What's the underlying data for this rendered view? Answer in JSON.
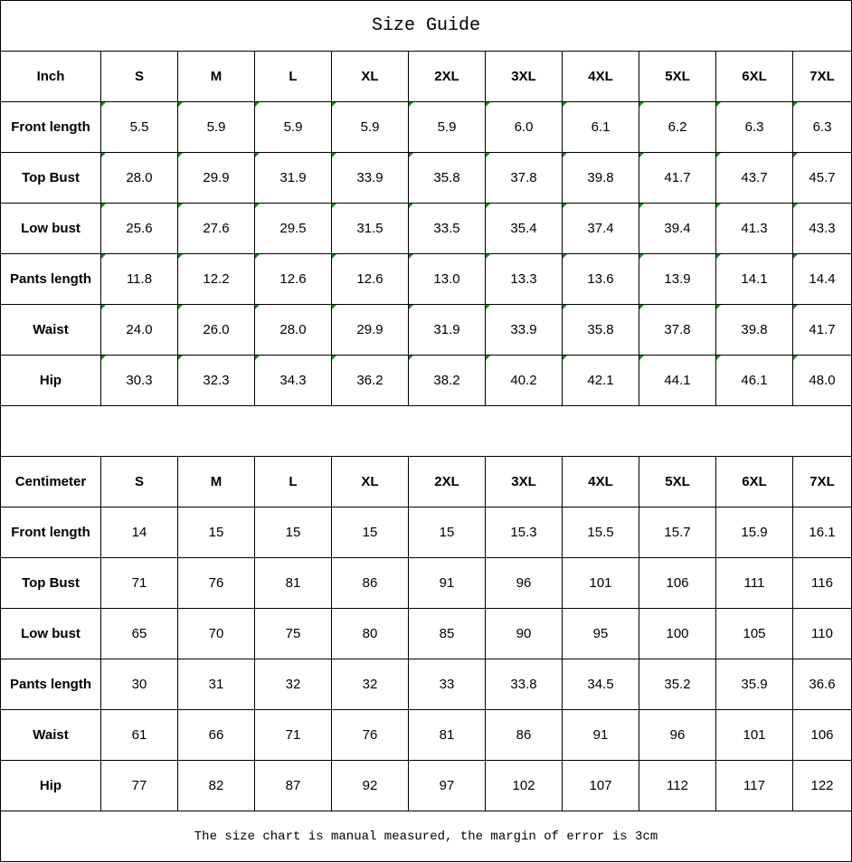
{
  "title": "Size Guide",
  "sizes": [
    "S",
    "M",
    "L",
    "XL",
    "2XL",
    "3XL",
    "4XL",
    "5XL",
    "6XL",
    "7XL"
  ],
  "inch": {
    "unit_label": "Inch",
    "rows": [
      {
        "label": "Front length",
        "values": [
          "5.5",
          "5.9",
          "5.9",
          "5.9",
          "5.9",
          "6.0",
          "6.1",
          "6.2",
          "6.3",
          "6.3"
        ]
      },
      {
        "label": "Top Bust",
        "values": [
          "28.0",
          "29.9",
          "31.9",
          "33.9",
          "35.8",
          "37.8",
          "39.8",
          "41.7",
          "43.7",
          "45.7"
        ]
      },
      {
        "label": "Low bust",
        "values": [
          "25.6",
          "27.6",
          "29.5",
          "31.5",
          "33.5",
          "35.4",
          "37.4",
          "39.4",
          "41.3",
          "43.3"
        ]
      },
      {
        "label": "Pants length",
        "values": [
          "11.8",
          "12.2",
          "12.6",
          "12.6",
          "13.0",
          "13.3",
          "13.6",
          "13.9",
          "14.1",
          "14.4"
        ]
      },
      {
        "label": "Waist",
        "values": [
          "24.0",
          "26.0",
          "28.0",
          "29.9",
          "31.9",
          "33.9",
          "35.8",
          "37.8",
          "39.8",
          "41.7"
        ]
      },
      {
        "label": "Hip",
        "values": [
          "30.3",
          "32.3",
          "34.3",
          "36.2",
          "38.2",
          "40.2",
          "42.1",
          "44.1",
          "46.1",
          "48.0"
        ]
      }
    ]
  },
  "cm": {
    "unit_label": "Centimeter",
    "rows": [
      {
        "label": "Front length",
        "values": [
          "14",
          "15",
          "15",
          "15",
          "15",
          "15.3",
          "15.5",
          "15.7",
          "15.9",
          "16.1"
        ]
      },
      {
        "label": "Top Bust",
        "values": [
          "71",
          "76",
          "81",
          "86",
          "91",
          "96",
          "101",
          "106",
          "111",
          "116"
        ]
      },
      {
        "label": "Low bust",
        "values": [
          "65",
          "70",
          "75",
          "80",
          "85",
          "90",
          "95",
          "100",
          "105",
          "110"
        ]
      },
      {
        "label": "Pants length",
        "values": [
          "30",
          "31",
          "32",
          "32",
          "33",
          "33.8",
          "34.5",
          "35.2",
          "35.9",
          "36.6"
        ]
      },
      {
        "label": "Waist",
        "values": [
          "61",
          "66",
          "71",
          "76",
          "81",
          "86",
          "91",
          "96",
          "101",
          "106"
        ]
      },
      {
        "label": "Hip",
        "values": [
          "77",
          "82",
          "87",
          "92",
          "97",
          "102",
          "107",
          "112",
          "117",
          "122"
        ]
      }
    ]
  },
  "footer": "The size chart is manual measured, the margin of error is 3cm",
  "colors": {
    "cell_marker": "#1a8a1a",
    "border": "#000000"
  }
}
